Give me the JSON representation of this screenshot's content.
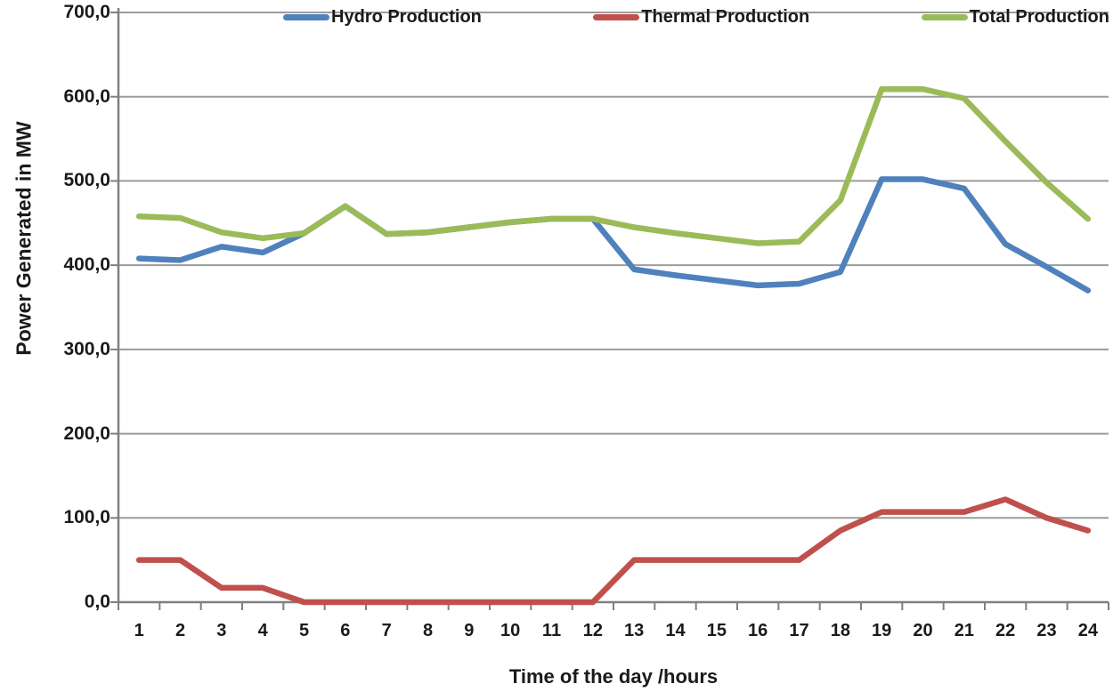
{
  "chart_data": {
    "type": "line",
    "x": [
      1,
      2,
      3,
      4,
      5,
      6,
      7,
      8,
      9,
      10,
      11,
      12,
      13,
      14,
      15,
      16,
      17,
      18,
      19,
      20,
      21,
      22,
      23,
      24
    ],
    "series": [
      {
        "name": "Hydro Production",
        "color": "#4F81BD",
        "values": [
          408,
          406,
          422,
          415,
          438,
          470,
          437,
          439,
          445,
          451,
          455,
          455,
          395,
          388,
          382,
          376,
          378,
          392,
          502,
          502,
          491,
          425,
          398,
          370
        ]
      },
      {
        "name": "Thermal Production",
        "color": "#C0504D",
        "values": [
          50,
          50,
          17,
          17,
          0,
          0,
          0,
          0,
          0,
          0,
          0,
          0,
          50,
          50,
          50,
          50,
          50,
          85,
          107,
          107,
          107,
          122,
          100,
          85
        ]
      },
      {
        "name": "Total Production",
        "color": "#9BBB59",
        "values": [
          458,
          456,
          439,
          432,
          438,
          470,
          437,
          439,
          445,
          451,
          455,
          455,
          445,
          438,
          432,
          426,
          428,
          477,
          609,
          609,
          598,
          547,
          498,
          455
        ]
      }
    ],
    "title": "",
    "xlabel": "Time of the day /hours",
    "ylabel": "Power Generated in MW",
    "ylim": [
      0,
      700
    ],
    "ytick_step": 100,
    "ytick_labels": [
      "0,0",
      "100,0",
      "200,0",
      "300,0",
      "400,0",
      "500,0",
      "600,0",
      "700,0"
    ],
    "legend_position": "top",
    "grid": true
  },
  "colors": {
    "gridline": "#9C9C9C",
    "axis": "#808080",
    "text": "#1A1A1A"
  }
}
